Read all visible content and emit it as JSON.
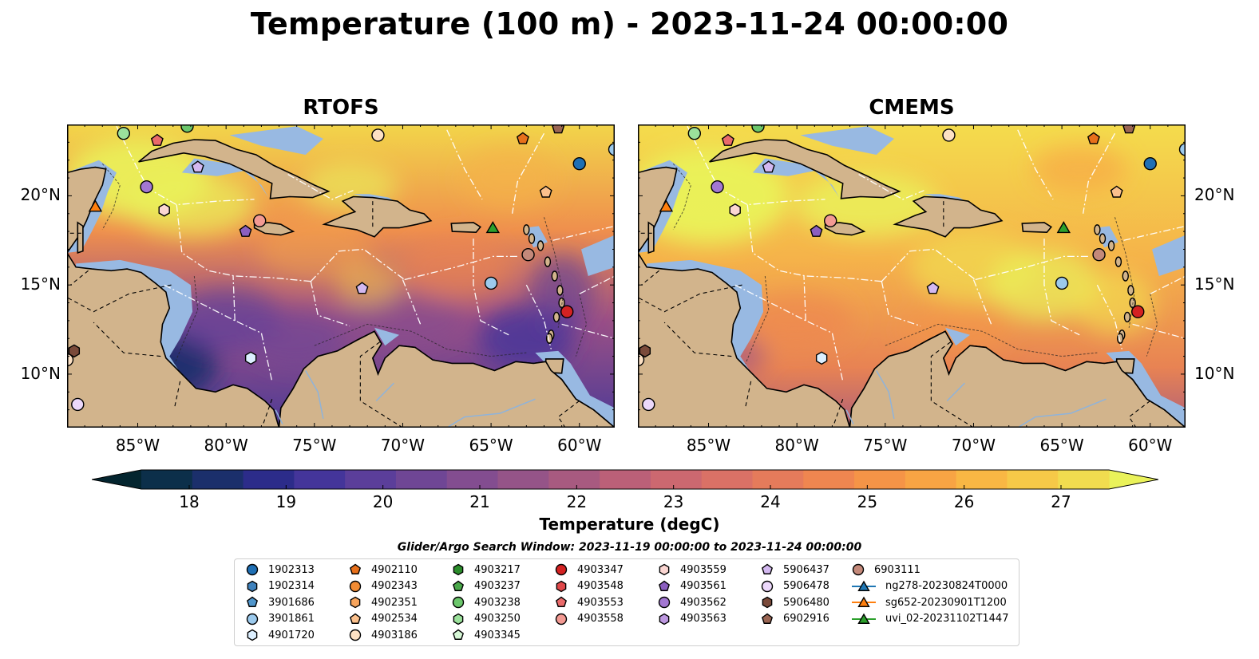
{
  "title": "Temperature (100 m) - 2023-11-24 00:00:00",
  "panels": [
    {
      "title": "RTOFS",
      "variant": "rtofs"
    },
    {
      "title": "CMEMS",
      "variant": "cmems"
    }
  ],
  "axes": {
    "x_ticks": [
      "85°W",
      "80°W",
      "75°W",
      "70°W",
      "65°W",
      "60°W"
    ],
    "y_ticks": [
      "20°N",
      "15°N",
      "10°N"
    ],
    "lon_range": [
      -89,
      -58
    ],
    "lat_range": [
      7,
      24
    ]
  },
  "colorbar": {
    "label": "Temperature (degC)",
    "ticks": [
      "18",
      "19",
      "20",
      "21",
      "22",
      "23",
      "24",
      "25",
      "26",
      "27"
    ],
    "range": [
      18,
      27
    ],
    "colors": [
      "#04252f",
      "#0c2f4a",
      "#1b2f6b",
      "#2c2c8a",
      "#44359a",
      "#5b3e9a",
      "#6f4695",
      "#834d90",
      "#955488",
      "#a85a80",
      "#bb6078",
      "#cc6870",
      "#da7166",
      "#e57b5b",
      "#ef8650",
      "#f59447",
      "#f8a444",
      "#f9b744",
      "#f6c948",
      "#f1dc4f",
      "#eaf25a"
    ]
  },
  "colors": {
    "land": "#d2b48c",
    "shelf": "#98b9e2",
    "deep_land_water": "#0a2432"
  },
  "legend": {
    "title": "Glider/Argo Search Window: 2023-11-19 00:00:00 to 2023-11-24 00:00:00",
    "columns": [
      [
        {
          "label": "1902313",
          "marker": "circle",
          "color": "#1f6fb4"
        },
        {
          "label": "1902314",
          "marker": "hexagon",
          "color": "#3f82bd"
        },
        {
          "label": "3901686",
          "marker": "pentagon",
          "color": "#5096cc"
        },
        {
          "label": "3901861",
          "marker": "circle",
          "color": "#9ccaed"
        },
        {
          "label": "4901720",
          "marker": "hexagon",
          "color": "#dcefff"
        }
      ],
      [
        {
          "label": "4902110",
          "marker": "pentagon",
          "color": "#e8701b"
        },
        {
          "label": "4902343",
          "marker": "circle",
          "color": "#f28c34"
        },
        {
          "label": "4902351",
          "marker": "hexagon",
          "color": "#f7a45c"
        },
        {
          "label": "4902534",
          "marker": "pentagon",
          "color": "#fbc08c"
        },
        {
          "label": "4903186",
          "marker": "circle",
          "color": "#fde1c4"
        }
      ],
      [
        {
          "label": "4903217",
          "marker": "hexagon",
          "color": "#2b8d2b"
        },
        {
          "label": "4903237",
          "marker": "pentagon",
          "color": "#4aa84a"
        },
        {
          "label": "4903238",
          "marker": "circle",
          "color": "#6cc76c"
        },
        {
          "label": "4903250",
          "marker": "hexagon",
          "color": "#9be19b"
        },
        {
          "label": "4903345",
          "marker": "pentagon",
          "color": "#d6f7d6"
        }
      ],
      [
        {
          "label": "4903347",
          "marker": "circle",
          "color": "#d42222"
        },
        {
          "label": "4903548",
          "marker": "hexagon",
          "color": "#e0484a"
        },
        {
          "label": "4903553",
          "marker": "pentagon",
          "color": "#ea6a6a"
        },
        {
          "label": "4903558",
          "marker": "circle",
          "color": "#f39a93"
        }
      ],
      [
        {
          "label": "4903559",
          "marker": "hexagon",
          "color": "#fbd6d2"
        },
        {
          "label": "4903561",
          "marker": "pentagon",
          "color": "#8b5fbf"
        },
        {
          "label": "4903562",
          "marker": "circle",
          "color": "#a377d2"
        },
        {
          "label": "4903563",
          "marker": "hexagon",
          "color": "#bd98e0"
        }
      ],
      [
        {
          "label": "5906437",
          "marker": "pentagon",
          "color": "#d3b8f0"
        },
        {
          "label": "5906478",
          "marker": "circle",
          "color": "#ecd8fb"
        },
        {
          "label": "5906480",
          "marker": "hexagon",
          "color": "#7a4a3a"
        },
        {
          "label": "6902916",
          "marker": "pentagon",
          "color": "#9a6553"
        }
      ],
      [
        {
          "label": "6903111",
          "marker": "circle",
          "color": "#c4897a"
        },
        {
          "label": "ng278-20230824T0000",
          "marker": "line-triangle",
          "color": "#1f77b4"
        },
        {
          "label": "sg652-20230901T1200",
          "marker": "line-triangle",
          "color": "#ff7f0e"
        },
        {
          "label": "uvi_02-20231102T1447",
          "marker": "line-triangle",
          "color": "#2ca02c"
        }
      ]
    ]
  },
  "stations": [
    {
      "lon": -85.8,
      "lat": 23.5,
      "marker": "circle",
      "color": "#9be19b"
    },
    {
      "lon": -83.9,
      "lat": 23.1,
      "marker": "pentagon",
      "color": "#ea6a6a"
    },
    {
      "lon": -82.2,
      "lat": 23.9,
      "marker": "circle",
      "color": "#6cc76c"
    },
    {
      "lon": -81.6,
      "lat": 21.6,
      "marker": "pentagon",
      "color": "#d3b8f0"
    },
    {
      "lon": -84.5,
      "lat": 20.5,
      "marker": "circle",
      "color": "#a377d2"
    },
    {
      "lon": -83.5,
      "lat": 19.2,
      "marker": "hexagon",
      "color": "#fbd6d2"
    },
    {
      "lon": -78.9,
      "lat": 18.0,
      "marker": "pentagon",
      "color": "#8b5fbf"
    },
    {
      "lon": -78.1,
      "lat": 18.6,
      "marker": "circle",
      "color": "#f39a93"
    },
    {
      "lon": -71.4,
      "lat": 23.4,
      "marker": "circle",
      "color": "#fde1c4"
    },
    {
      "lon": -63.2,
      "lat": 23.2,
      "marker": "pentagon",
      "color": "#e8701b"
    },
    {
      "lon": -61.2,
      "lat": 23.8,
      "marker": "pentagon",
      "color": "#9a6553"
    },
    {
      "lon": -60.0,
      "lat": 21.8,
      "marker": "circle",
      "color": "#1f6fb4"
    },
    {
      "lon": -61.9,
      "lat": 20.2,
      "marker": "pentagon",
      "color": "#fbc08c"
    },
    {
      "lon": -62.9,
      "lat": 16.7,
      "marker": "circle",
      "color": "#c4897a"
    },
    {
      "lon": -65.0,
      "lat": 15.1,
      "marker": "circle",
      "color": "#9ccaed"
    },
    {
      "lon": -60.7,
      "lat": 13.5,
      "marker": "circle",
      "color": "#d42222"
    },
    {
      "lon": -72.3,
      "lat": 14.8,
      "marker": "pentagon",
      "color": "#d3b8f0"
    },
    {
      "lon": -78.6,
      "lat": 10.9,
      "marker": "hexagon",
      "color": "#dcefff"
    },
    {
      "lon": -88.6,
      "lat": 11.3,
      "marker": "hexagon",
      "color": "#7a4a3a"
    },
    {
      "lon": -88.4,
      "lat": 8.3,
      "marker": "circle",
      "color": "#ecd8fb"
    },
    {
      "lon": -89.0,
      "lat": 10.8,
      "marker": "circle",
      "color": "#fde1c4"
    },
    {
      "lon": -58.0,
      "lat": 22.6,
      "marker": "circle",
      "color": "#9ccaed"
    },
    {
      "lon": -87.4,
      "lat": 19.4,
      "marker": "triangle",
      "color": "#ff7f0e"
    },
    {
      "lon": -64.9,
      "lat": 18.2,
      "marker": "triangle",
      "color": "#2ca02c"
    }
  ]
}
